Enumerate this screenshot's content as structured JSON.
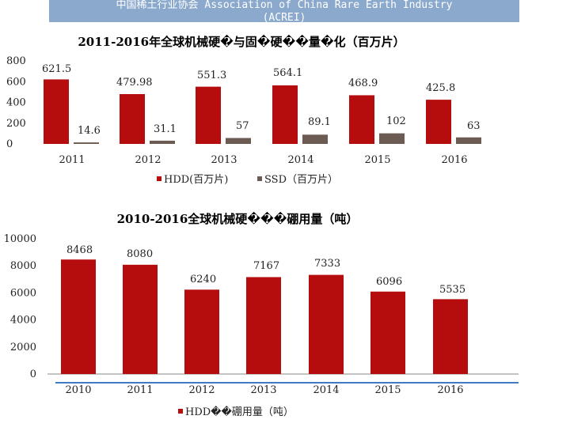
{
  "header": {
    "line1": "中国稀土行业协会 Association of China Rare Earth Industry",
    "line2": "(ACREI)"
  },
  "colors": {
    "hdd": "#b50d0d",
    "ssd": "#6b5b52",
    "header": "#8aa9cc",
    "axis_underline": "#3f7bbf"
  },
  "chart_data": [
    {
      "type": "bar",
      "title": "2011-2016年全球机械硬�与固�硬��量�化（百万片）",
      "categories": [
        "2011",
        "2012",
        "2013",
        "2014",
        "2015",
        "2016"
      ],
      "series": [
        {
          "name": "HDD(百万片)",
          "values": [
            621.5,
            479.98,
            551.3,
            564.1,
            468.9,
            425.8
          ],
          "labels": [
            "621.5",
            "479.98",
            "551.3",
            "564.1",
            "468.9",
            "425.8"
          ]
        },
        {
          "name": "SSD（百万片）",
          "values": [
            14.6,
            31.1,
            57,
            89.1,
            102,
            63
          ],
          "labels": [
            "14.6",
            "31.1",
            "57",
            "89.1",
            "102",
            "63"
          ]
        }
      ],
      "yticks": [
        "800",
        "600",
        "400",
        "200",
        "0"
      ],
      "ylim": [
        0,
        800
      ],
      "grid": false,
      "legend": "bottom"
    },
    {
      "type": "bar",
      "title": "2010-2016全球机械硬���硼用量（吨）",
      "categories": [
        "2010",
        "2011",
        "2012",
        "2013",
        "2014",
        "2015",
        "2016"
      ],
      "series": [
        {
          "name": "HDD��硼用量（吨）",
          "values": [
            8468,
            8080,
            6240,
            7167,
            7333,
            6096,
            5535
          ],
          "labels": [
            "8468",
            "8080",
            "6240",
            "7167",
            "7333",
            "6096",
            "5535"
          ]
        }
      ],
      "yticks": [
        "10000",
        "8000",
        "6000",
        "4000",
        "2000",
        "0"
      ],
      "ylim": [
        0,
        10000
      ],
      "grid": false,
      "legend": "bottom"
    }
  ]
}
